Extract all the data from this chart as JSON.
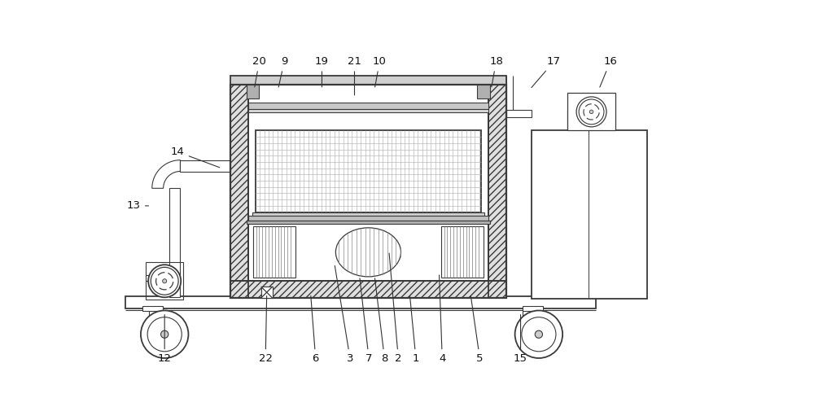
{
  "bg_color": "#ffffff",
  "lc": "#3a3a3a",
  "lw": 1.3,
  "annotations_top": [
    [
      "20",
      248,
      18,
      240,
      62
    ],
    [
      "9",
      288,
      18,
      278,
      62
    ],
    [
      "19",
      348,
      18,
      348,
      62
    ],
    [
      "21",
      400,
      18,
      400,
      75
    ],
    [
      "10",
      440,
      18,
      432,
      62
    ],
    [
      "18",
      626,
      18,
      618,
      62
    ],
    [
      "17",
      718,
      18,
      680,
      62
    ],
    [
      "16",
      808,
      18,
      790,
      62
    ]
  ],
  "annotations_side": [
    [
      "14",
      118,
      162,
      188,
      188
    ],
    [
      "13",
      48,
      248,
      75,
      248
    ]
  ],
  "annotations_bot": [
    [
      "12",
      97,
      492,
      97,
      418
    ],
    [
      "22",
      258,
      492,
      260,
      388
    ],
    [
      "6",
      338,
      492,
      330,
      388
    ],
    [
      "3",
      393,
      492,
      368,
      340
    ],
    [
      "7",
      423,
      492,
      408,
      360
    ],
    [
      "8",
      448,
      492,
      432,
      360
    ],
    [
      "2",
      470,
      492,
      455,
      320
    ],
    [
      "1",
      498,
      492,
      488,
      388
    ],
    [
      "4",
      540,
      492,
      535,
      355
    ],
    [
      "5",
      600,
      492,
      585,
      388
    ],
    [
      "15",
      665,
      492,
      665,
      418
    ]
  ]
}
